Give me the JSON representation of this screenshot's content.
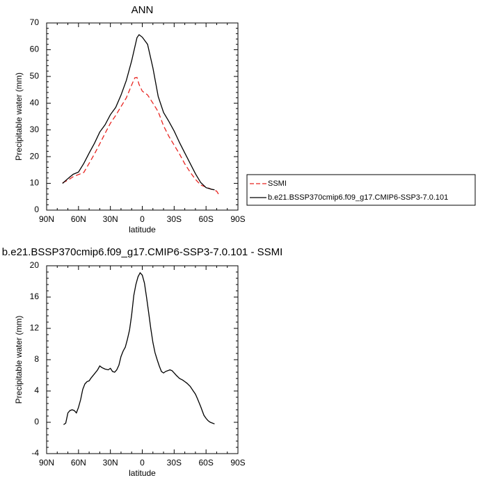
{
  "chart_data": [
    {
      "type": "line",
      "title": "ANN",
      "xlabel": "latitude",
      "ylabel": "Precipitable water (mm)",
      "xlim": [
        90,
        -90
      ],
      "ylim": [
        0,
        70
      ],
      "x_ticks": [
        90,
        60,
        30,
        0,
        -30,
        -60,
        -90
      ],
      "x_tick_labels": [
        "90N",
        "60N",
        "30N",
        "0",
        "30S",
        "60S",
        "90S"
      ],
      "y_ticks": [
        0,
        10,
        20,
        30,
        40,
        50,
        60,
        70
      ],
      "y_tick_labels": [
        "0",
        "10",
        "20",
        "30",
        "40",
        "50",
        "60",
        "70"
      ],
      "legend": {
        "placement": "right"
      },
      "series": [
        {
          "name": "SSMI",
          "color": "#e8231f",
          "dash": "dashed",
          "x": [
            75,
            70,
            65,
            60,
            55,
            50,
            45,
            40,
            35,
            30,
            25,
            20,
            15,
            10,
            7,
            5,
            3,
            0,
            -5,
            -10,
            -15,
            -20,
            -25,
            -30,
            -35,
            -40,
            -45,
            -50,
            -55,
            -60,
            -65,
            -70,
            -72
          ],
          "y": [
            10.2,
            11.2,
            12.5,
            13.3,
            14.1,
            17.5,
            21.0,
            24.8,
            28.7,
            32.5,
            35.4,
            38.7,
            42.0,
            46.8,
            49.5,
            49.6,
            47.0,
            44.5,
            43.1,
            40.0,
            36.8,
            31.5,
            27.6,
            24.3,
            21.0,
            17.3,
            14.2,
            11.5,
            9.4,
            8.6,
            7.8,
            7.1,
            5.8
          ]
        },
        {
          "name": "b.e21.BSSP370cmip6.f09_g17.CMIP6-SSP3-7.0.101",
          "color": "#000000",
          "dash": "solid",
          "x": [
            75,
            70,
            65,
            60,
            55,
            50,
            45,
            40,
            35,
            30,
            25,
            20,
            15,
            10,
            5,
            3,
            0,
            -5,
            -10,
            -15,
            -20,
            -25,
            -30,
            -35,
            -40,
            -45,
            -50,
            -55,
            -60,
            -65,
            -68
          ],
          "y": [
            10.0,
            11.8,
            13.4,
            14.2,
            17.5,
            21.3,
            25.0,
            29.2,
            31.9,
            35.7,
            38.4,
            43.0,
            48.5,
            55.8,
            64.5,
            65.6,
            64.7,
            62.0,
            53.2,
            42.5,
            36.5,
            33.2,
            29.6,
            25.3,
            21.4,
            17.5,
            13.6,
            10.3,
            8.4,
            7.8,
            7.6
          ]
        }
      ]
    },
    {
      "type": "line",
      "title": "b.e21.BSSP370cmip6.f09_g17.CMIP6-SSP3-7.0.101 - SSMI",
      "xlabel": "latitude",
      "ylabel": "Precipitable water (mm)",
      "xlim": [
        90,
        -90
      ],
      "ylim": [
        -4,
        20
      ],
      "x_ticks": [
        90,
        60,
        30,
        0,
        -30,
        -60,
        -90
      ],
      "x_tick_labels": [
        "90N",
        "60N",
        "30N",
        "0",
        "30S",
        "60S",
        "90S"
      ],
      "y_ticks": [
        -4,
        0,
        4,
        8,
        12,
        16,
        20
      ],
      "y_tick_labels": [
        "-4",
        "0",
        "4",
        "8",
        "12",
        "16",
        "20"
      ],
      "series": [
        {
          "color": "#000000",
          "dash": "solid",
          "x": [
            74,
            72,
            70,
            68,
            66,
            64,
            62,
            60,
            58,
            56,
            54,
            52,
            50,
            48,
            45,
            42,
            40,
            38,
            35,
            32,
            30,
            28,
            26,
            24,
            22,
            20,
            18,
            16,
            14,
            12,
            10,
            8,
            6,
            4,
            2,
            0,
            -2,
            -4,
            -6,
            -8,
            -10,
            -12,
            -14,
            -16,
            -18,
            -20,
            -22,
            -24,
            -26,
            -28,
            -30,
            -32,
            -35,
            -38,
            -40,
            -42,
            -45,
            -48,
            -50,
            -52,
            -55,
            -58,
            -60,
            -62,
            -64,
            -66,
            -68
          ],
          "y": [
            -0.3,
            -0.1,
            1.2,
            1.5,
            1.6,
            1.5,
            1.2,
            1.9,
            2.9,
            4.2,
            4.9,
            5.2,
            5.3,
            5.7,
            6.2,
            6.7,
            7.2,
            7.0,
            6.8,
            6.7,
            6.9,
            6.5,
            6.4,
            6.7,
            7.3,
            8.4,
            9.1,
            9.6,
            10.6,
            11.8,
            13.7,
            16.2,
            17.6,
            18.6,
            19.1,
            18.8,
            17.8,
            16.0,
            14.0,
            12.0,
            10.2,
            8.9,
            8.0,
            7.2,
            6.5,
            6.3,
            6.5,
            6.6,
            6.7,
            6.6,
            6.3,
            6.0,
            5.6,
            5.4,
            5.2,
            5.0,
            4.6,
            4.0,
            3.6,
            3.0,
            2.0,
            0.9,
            0.5,
            0.2,
            0.0,
            -0.1,
            -0.2
          ]
        }
      ]
    }
  ]
}
